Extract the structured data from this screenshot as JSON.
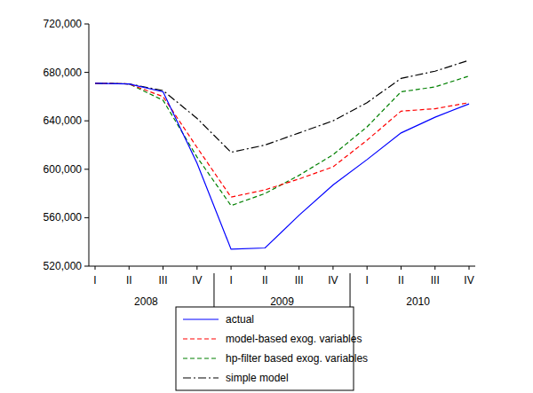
{
  "chart_data": {
    "type": "line",
    "categories": [
      "I",
      "II",
      "III",
      "IV",
      "I",
      "II",
      "III",
      "IV",
      "I",
      "II",
      "III",
      "IV"
    ],
    "x_group_labels": [
      "2008",
      "2009",
      "2010"
    ],
    "ylim": [
      520000,
      720000
    ],
    "yticks": [
      {
        "value": 520000,
        "label": "520,000"
      },
      {
        "value": 560000,
        "label": "560,000"
      },
      {
        "value": 600000,
        "label": "600,000"
      },
      {
        "value": 640000,
        "label": "640,000"
      },
      {
        "value": 680000,
        "label": "680,000"
      },
      {
        "value": 720000,
        "label": "720,000"
      }
    ],
    "grid": false,
    "legend": "bottom",
    "series": [
      {
        "name": "actual",
        "color": "#0000ff",
        "line_style": "solid",
        "values": [
          671000,
          670500,
          664000,
          605000,
          534000,
          535000,
          562000,
          587000,
          608000,
          630000,
          643000,
          654000
        ]
      },
      {
        "name": "model-based exog. variables",
        "color": "#ff0000",
        "line_style": "dashed",
        "values": [
          671000,
          670500,
          660000,
          618000,
          577000,
          583000,
          592000,
          602000,
          624000,
          648000,
          650000,
          655000
        ]
      },
      {
        "name": "hp-filter based exog. variables",
        "color": "#008000",
        "line_style": "dashed",
        "values": [
          671000,
          670500,
          657000,
          610000,
          570000,
          580000,
          595000,
          612000,
          635000,
          664000,
          668000,
          677000
        ]
      },
      {
        "name": "simple model",
        "color": "#000000",
        "line_style": "dashdot",
        "values": [
          671000,
          670500,
          665000,
          642000,
          614000,
          620000,
          630000,
          640000,
          655000,
          675000,
          681000,
          690000
        ]
      }
    ]
  }
}
